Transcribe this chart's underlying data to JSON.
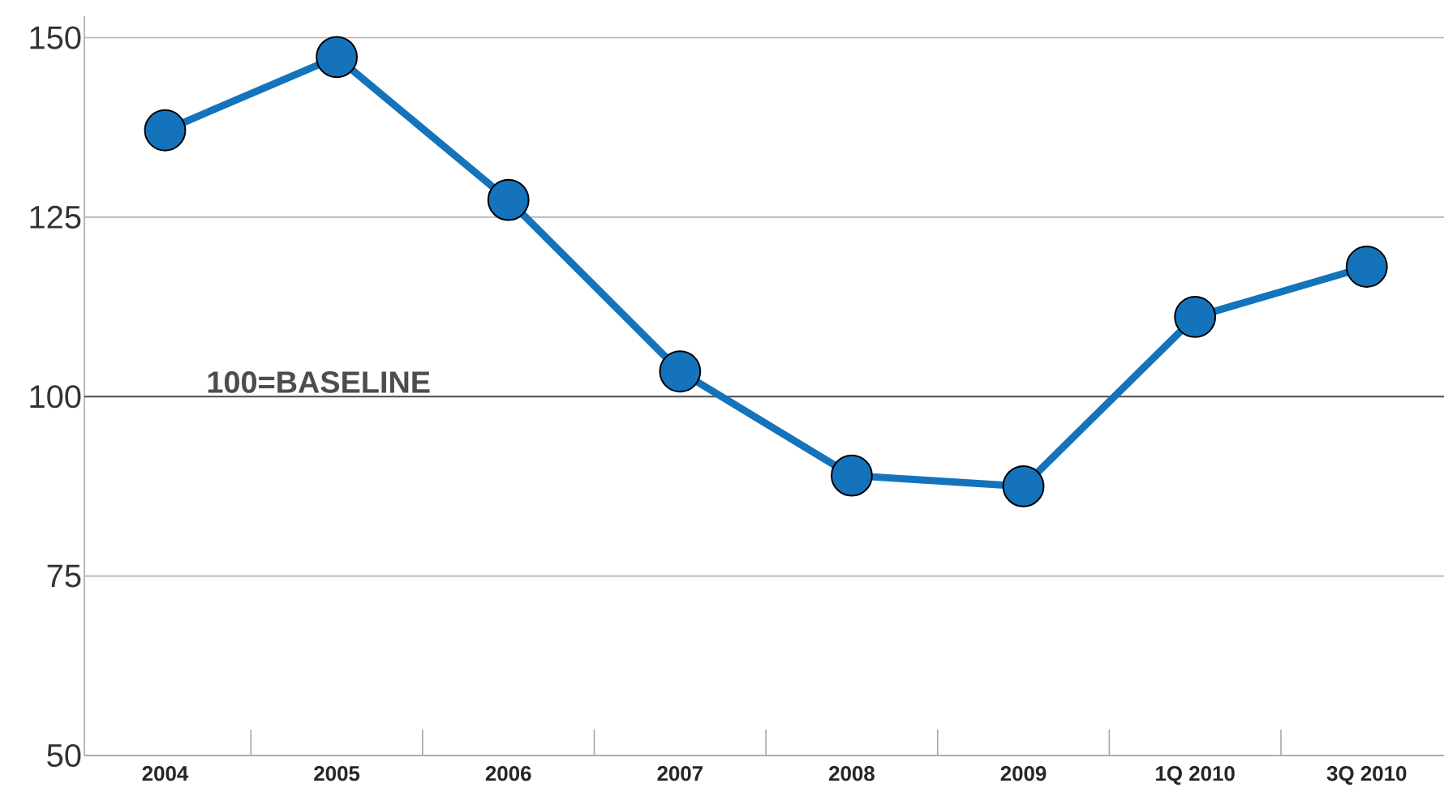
{
  "chart_data": {
    "type": "line",
    "categories": [
      "2004",
      "2005",
      "2006",
      "2007",
      "2008",
      "2009",
      "1Q 2010",
      "3Q 2010"
    ],
    "series": [
      {
        "color": "#1473bb",
        "values": [
          137.1,
          147.3,
          127.4,
          103.5,
          89.0,
          87.5,
          111.1,
          118.1
        ]
      }
    ],
    "ylim": [
      50,
      153
    ],
    "yticks": [
      50,
      75,
      100,
      125,
      150
    ],
    "grid": "y",
    "marker": "circle",
    "line_style": "solid",
    "ref_lines": [
      {
        "axis": "y",
        "value": 100,
        "label": "100=BASELINE",
        "color": "#4d4d4d"
      }
    ]
  }
}
